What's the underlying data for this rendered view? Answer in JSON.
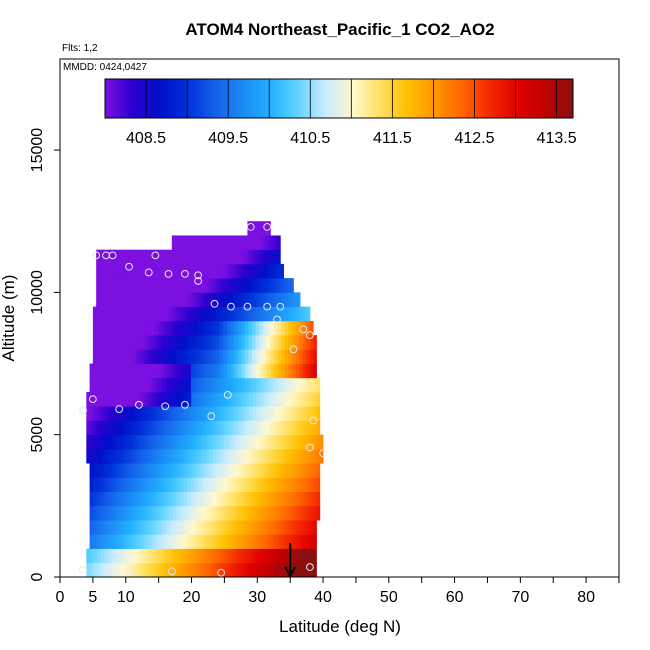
{
  "chart_data": {
    "type": "heatmap",
    "title": "ATOM4 Northeast_Pacific_1 CO2_AO2",
    "subtitle_flights": "Flts: 1,2",
    "subtitle_dates": "MMDD: 0424,0427",
    "xlabel": "Latitude (deg N)",
    "ylabel": "Altitude (m)",
    "xlim": [
      0,
      85
    ],
    "ylim": [
      0,
      18000
    ],
    "x_ticks": [
      0,
      5,
      10,
      20,
      30,
      40,
      50,
      60,
      70,
      80
    ],
    "x_minor_ticks": [
      15,
      25,
      35,
      45,
      55,
      65,
      75,
      85
    ],
    "y_ticks": [
      0,
      5000,
      10000,
      15000
    ],
    "colorbar": {
      "range": [
        408.0,
        413.7
      ],
      "tick_values": [
        408.5,
        409.5,
        410.5,
        411.5,
        412.5,
        413.5
      ],
      "tick_labels": [
        "408.5",
        "409.5",
        "410.5",
        "411.5",
        "412.5",
        "413.5"
      ],
      "colors": [
        "#7b10e0",
        "#2a00d0",
        "#0010c8",
        "#0030d8",
        "#1460ea",
        "#1b8af5",
        "#22b0ff",
        "#60d4ff",
        "#c8ecff",
        "#fff8d0",
        "#ffe060",
        "#ffbf00",
        "#ff9500",
        "#ff6400",
        "#f52800",
        "#e00000",
        "#c00000",
        "#8a1010"
      ]
    },
    "row_height_m": 500,
    "rows": [
      {
        "y": 0,
        "x0": 4.0,
        "x1": 39.0
      },
      {
        "y": 500,
        "x0": 4.0,
        "x1": 39.0
      },
      {
        "y": 1000,
        "x0": 4.5,
        "x1": 39.0
      },
      {
        "y": 1500,
        "x0": 4.5,
        "x1": 39.0
      },
      {
        "y": 2000,
        "x0": 4.5,
        "x1": 39.5
      },
      {
        "y": 2500,
        "x0": 4.5,
        "x1": 39.5
      },
      {
        "y": 3000,
        "x0": 4.5,
        "x1": 39.5
      },
      {
        "y": 3500,
        "x0": 4.5,
        "x1": 39.5
      },
      {
        "y": 4000,
        "x0": 4.0,
        "x1": 40.0
      },
      {
        "y": 4500,
        "x0": 4.0,
        "x1": 40.0
      },
      {
        "y": 5000,
        "x0": 4.0,
        "x1": 39.5
      },
      {
        "y": 5500,
        "x0": 4.0,
        "x1": 39.5
      },
      {
        "y": 6000,
        "x0": 4.0,
        "x1": 39.5
      },
      {
        "y": 6500,
        "x0": 4.5,
        "x1": 39.5
      },
      {
        "y": 7000,
        "x0": 4.5,
        "x1": 39.0
      },
      {
        "y": 7500,
        "x0": 5.0,
        "x1": 39.0
      },
      {
        "y": 8000,
        "x0": 5.0,
        "x1": 39.0
      },
      {
        "y": 8500,
        "x0": 5.0,
        "x1": 38.5
      },
      {
        "y": 9000,
        "x0": 5.0,
        "x1": 38.0
      },
      {
        "y": 9500,
        "x0": 5.5,
        "x1": 36.5
      },
      {
        "y": 10000,
        "x0": 5.5,
        "x1": 35.5
      },
      {
        "y": 10500,
        "x0": 5.5,
        "x1": 34.0
      },
      {
        "y": 11000,
        "x0": 5.5,
        "x1": 33.5
      },
      {
        "y": 11500,
        "x0": 17.0,
        "x1": 33.5
      },
      {
        "y": 12000,
        "x0": 28.5,
        "x1": 32.0
      }
    ],
    "sample_points": [
      {
        "x": 5.5,
        "y": 11300
      },
      {
        "x": 7.0,
        "y": 11300
      },
      {
        "x": 8.0,
        "y": 11300
      },
      {
        "x": 14.5,
        "y": 11300
      },
      {
        "x": 10.5,
        "y": 10900
      },
      {
        "x": 13.5,
        "y": 10700
      },
      {
        "x": 16.5,
        "y": 10650
      },
      {
        "x": 19.0,
        "y": 10650
      },
      {
        "x": 21.0,
        "y": 10600
      },
      {
        "x": 21.0,
        "y": 10400
      },
      {
        "x": 29.0,
        "y": 12300
      },
      {
        "x": 31.5,
        "y": 12300
      },
      {
        "x": 23.5,
        "y": 9600
      },
      {
        "x": 26.0,
        "y": 9500
      },
      {
        "x": 28.5,
        "y": 9500
      },
      {
        "x": 31.5,
        "y": 9500
      },
      {
        "x": 33.5,
        "y": 9500
      },
      {
        "x": 33.0,
        "y": 9050
      },
      {
        "x": 37.0,
        "y": 8700
      },
      {
        "x": 38.0,
        "y": 8500
      },
      {
        "x": 35.5,
        "y": 8000
      },
      {
        "x": 25.5,
        "y": 6400
      },
      {
        "x": 5.0,
        "y": 6250
      },
      {
        "x": 3.5,
        "y": 5850
      },
      {
        "x": 9.0,
        "y": 5900
      },
      {
        "x": 12.0,
        "y": 6050
      },
      {
        "x": 16.0,
        "y": 6000
      },
      {
        "x": 19.0,
        "y": 6050
      },
      {
        "x": 23.0,
        "y": 5650
      },
      {
        "x": 38.5,
        "y": 5500
      },
      {
        "x": 38.0,
        "y": 4550
      },
      {
        "x": 40.0,
        "y": 4350
      },
      {
        "x": 3.5,
        "y": 250
      },
      {
        "x": 10.5,
        "y": 200
      },
      {
        "x": 17.0,
        "y": 200
      },
      {
        "x": 24.5,
        "y": 150
      },
      {
        "x": 38.0,
        "y": 350
      }
    ],
    "arrow_marker": {
      "x": 35.0,
      "y_from": 700,
      "y_to": 0
    }
  }
}
